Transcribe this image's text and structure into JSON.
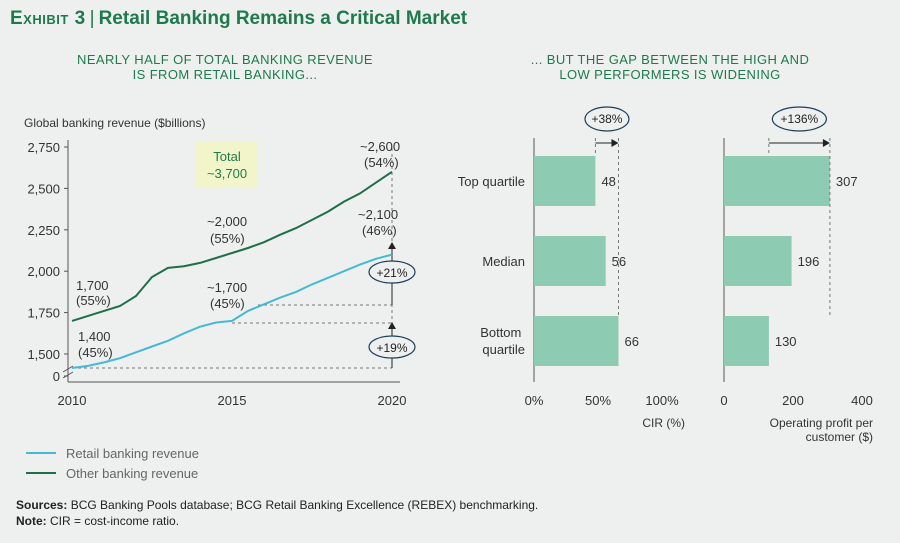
{
  "exhibit": {
    "label": "Exhibit 3",
    "title": "Retail Banking Remains a Critical Market"
  },
  "left_panel": {
    "subtitle_line1": "NEARLY HALF OF TOTAL BANKING REVENUE",
    "subtitle_line2": "IS FROM RETAIL BANKING...",
    "total_box_line1": "Total",
    "total_box_line2": "~3,700",
    "growth_other": "+21%",
    "growth_retail": "+19%"
  },
  "right_panel": {
    "subtitle_line1": "... BUT THE GAP BETWEEN THE HIGH AND",
    "subtitle_line2": "LOW PERFORMERS IS WIDENING",
    "gap_cir": "+38%",
    "gap_profit": "+136%"
  },
  "footer": {
    "sources_label": "Sources:",
    "sources_text": "BCG Banking Pools database; BCG Retail Banking Excellence (REBEX) benchmarking.",
    "note_label": "Note:",
    "note_text": "CIR = cost-income ratio."
  },
  "colors": {
    "retail": "#45b9d4",
    "other": "#1e6e48",
    "bar": "#8dcbb2",
    "accent": "#1e7a4c",
    "highlight": "#f2f5c9"
  },
  "chart_data": [
    {
      "type": "line",
      "title": "Global banking revenue",
      "ylabel": "Global banking revenue ($billions)",
      "xlabel": "",
      "x_ticks": [
        "2010",
        "2015",
        "2020"
      ],
      "x_range": [
        2010,
        2020
      ],
      "y_ticks": [
        "2,750",
        "2,500",
        "2,250",
        "2,000",
        "1,750",
        "1,500",
        "0"
      ],
      "y_range": [
        1400,
        2750
      ],
      "axis_break": true,
      "series": [
        {
          "name": "Other banking revenue",
          "x": [
            2010,
            2010.5,
            2011,
            2011.5,
            2012,
            2012.5,
            2013,
            2013.5,
            2014,
            2014.5,
            2015,
            2015.5,
            2016,
            2016.5,
            2017,
            2017.5,
            2018,
            2018.5,
            2019,
            2019.5,
            2020
          ],
          "values": [
            1700,
            1730,
            1760,
            1790,
            1850,
            1965,
            2020,
            2030,
            2050,
            2080,
            2110,
            2140,
            2175,
            2220,
            2260,
            2310,
            2360,
            2420,
            2470,
            2535,
            2600
          ]
        },
        {
          "name": "Retail banking revenue",
          "x": [
            2010,
            2010.5,
            2011,
            2011.5,
            2012,
            2012.5,
            2013,
            2013.5,
            2014,
            2014.5,
            2015,
            2015.5,
            2016,
            2016.5,
            2017,
            2017.5,
            2018,
            2018.5,
            2019,
            2019.5,
            2020
          ],
          "values": [
            1400,
            1415,
            1440,
            1470,
            1510,
            1545,
            1580,
            1625,
            1665,
            1690,
            1700,
            1760,
            1800,
            1840,
            1875,
            1920,
            1960,
            2000,
            2040,
            2075,
            2100
          ]
        }
      ],
      "annotations": [
        {
          "line1": "1,700",
          "line2": "(55%)"
        },
        {
          "line1": "1,400",
          "line2": "(45%)"
        },
        {
          "line1": "~2,000",
          "line2": "(55%)"
        },
        {
          "line1": "~1,700",
          "line2": "(45%)"
        },
        {
          "line1": "~2,600",
          "line2": "(54%)"
        },
        {
          "line1": "~2,100",
          "line2": "(46%)"
        }
      ],
      "legend": [
        "Retail banking revenue",
        "Other banking revenue"
      ]
    },
    {
      "type": "bar",
      "orientation": "horizontal",
      "categories": [
        "Top quartile",
        "Median",
        "Bottom quartile"
      ],
      "values": [
        48,
        56,
        66
      ],
      "unit": "%",
      "xlabel": "CIR (%)",
      "x_ticks": [
        "0%",
        "50%",
        "100%"
      ],
      "xlim": [
        0,
        100
      ]
    },
    {
      "type": "bar",
      "orientation": "horizontal",
      "categories": [
        "Top quartile",
        "Median",
        "Bottom quartile"
      ],
      "values": [
        307,
        196,
        130
      ],
      "unit": "$",
      "xlabel_line1": "Operating profit per",
      "xlabel_line2": "customer ($)",
      "x_ticks": [
        "0",
        "200",
        "400"
      ],
      "xlim": [
        0,
        400
      ]
    }
  ]
}
